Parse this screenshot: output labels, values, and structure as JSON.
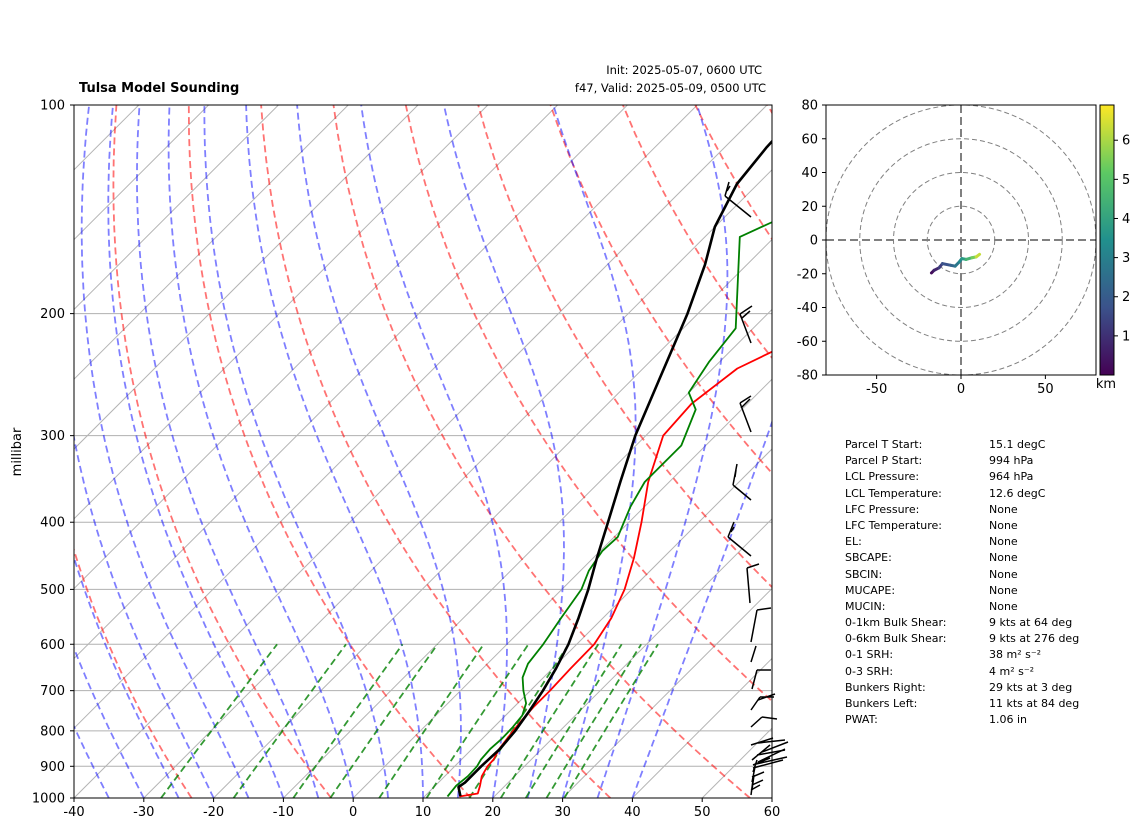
{
  "header": {
    "title": "Tulsa Model Sounding",
    "init": "Init: 2025-05-07, 0600 UTC",
    "valid": "f47, Valid: 2025-05-09, 0500 UTC"
  },
  "chart_data": [
    {
      "type": "line",
      "subtype": "skew-t log-p",
      "ylabel": "millibar",
      "xlabel": "",
      "xlim": [
        -40,
        60
      ],
      "ylim": [
        1000,
        100
      ],
      "log_y": true,
      "x_ticks": [
        -40,
        -30,
        -20,
        -10,
        0,
        10,
        20,
        30,
        40,
        50,
        60
      ],
      "y_ticks": [
        1000,
        900,
        800,
        700,
        600,
        500,
        400,
        300,
        200,
        100
      ],
      "grid": true,
      "colors": {
        "temperature": "#ff0000",
        "dewpoint": "#008000",
        "parcel": "#000000",
        "dry_adiabats": "#ff0000",
        "moist_adiabats": "#0000ff",
        "mixing_ratio": "#008000"
      },
      "series": [
        {
          "key": "temperature",
          "points": [
            [
              15.0,
              995
            ],
            [
              17.2,
              985
            ],
            [
              16.4,
              960
            ],
            [
              15.3,
              930
            ],
            [
              14.7,
              900
            ],
            [
              14.6,
              880
            ],
            [
              13.9,
              850
            ],
            [
              13.3,
              800
            ],
            [
              13.0,
              770
            ],
            [
              12.8,
              740
            ],
            [
              12.8,
              700
            ],
            [
              12.6,
              650
            ],
            [
              12.5,
              600
            ],
            [
              11.2,
              550
            ],
            [
              9.0,
              500
            ],
            [
              5.8,
              450
            ],
            [
              1.8,
              400
            ],
            [
              -3.0,
              350
            ],
            [
              -7.5,
              300
            ],
            [
              -8.0,
              270
            ],
            [
              -6.5,
              240
            ],
            [
              -2.5,
              220
            ],
            [
              7.5,
              190
            ],
            [
              20.0,
              160
            ],
            [
              28.0,
              140
            ],
            [
              39.0,
              115
            ],
            [
              49.0,
              100
            ]
          ]
        },
        {
          "key": "dewpoint",
          "points": [
            [
              13.3,
              995
            ],
            [
              13.0,
              960
            ],
            [
              13.3,
              930
            ],
            [
              13.2,
              900
            ],
            [
              12.8,
              880
            ],
            [
              12.6,
              850
            ],
            [
              12.8,
              820
            ],
            [
              12.7,
              790
            ],
            [
              12.4,
              760
            ],
            [
              11.2,
              730
            ],
            [
              9.0,
              700
            ],
            [
              7.0,
              670
            ],
            [
              5.8,
              640
            ],
            [
              5.2,
              600
            ],
            [
              4.0,
              550
            ],
            [
              2.8,
              500
            ],
            [
              1.2,
              470
            ],
            [
              0.3,
              440
            ],
            [
              0.5,
              420
            ],
            [
              -2.0,
              380
            ],
            [
              -3.5,
              350
            ],
            [
              -3.5,
              310
            ],
            [
              -6.6,
              275
            ],
            [
              -10.0,
              260
            ],
            [
              -11.5,
              235
            ],
            [
              -12.5,
              210
            ],
            [
              -25.0,
              155
            ],
            [
              -16.0,
              130
            ],
            [
              -5.0,
              100
            ]
          ]
        },
        {
          "key": "parcel",
          "points": [
            [
              15.1,
              994
            ],
            [
              13.5,
              964
            ],
            [
              13.8,
              950
            ],
            [
              13.8,
              900
            ],
            [
              14.0,
              850
            ],
            [
              13.6,
              800
            ],
            [
              12.8,
              750
            ],
            [
              11.8,
              700
            ],
            [
              10.5,
              650
            ],
            [
              8.8,
              600
            ],
            [
              6.5,
              550
            ],
            [
              3.8,
              500
            ],
            [
              0.5,
              450
            ],
            [
              -3.0,
              400
            ],
            [
              -7.0,
              350
            ],
            [
              -11.5,
              300
            ],
            [
              -16.0,
              250
            ],
            [
              -21.5,
              200
            ],
            [
              -26.0,
              170
            ],
            [
              -30.0,
              150
            ],
            [
              -33.0,
              130
            ],
            [
              -34.0,
              115
            ],
            [
              -34.5,
              100
            ]
          ]
        }
      ],
      "wind_barbs": "shown at right edge, 1000-130 hPa"
    },
    {
      "type": "line",
      "subtype": "hodograph",
      "xlim": [
        -80,
        80
      ],
      "ylim": [
        -80,
        80
      ],
      "x_ticks": [
        -50,
        0,
        50
      ],
      "y_ticks": [
        80,
        60,
        40,
        20,
        0,
        -20,
        -40,
        -60,
        -80
      ],
      "rings": [
        20,
        40,
        60,
        80
      ],
      "colorbar": {
        "label": "km",
        "ticks": [
          6,
          5,
          4,
          3,
          2,
          1
        ],
        "colormap": "viridis",
        "max": 6.9
      },
      "points": [
        [
          -17.5,
          -19.5,
          0.0
        ],
        [
          -16.0,
          -18.0,
          0.5
        ],
        [
          -13.0,
          -16.5,
          1.0
        ],
        [
          -11.0,
          -14.0,
          1.5
        ],
        [
          -6.0,
          -15.0,
          2.0
        ],
        [
          -3.5,
          -15.5,
          2.5
        ],
        [
          -1.0,
          -13.0,
          3.0
        ],
        [
          0.5,
          -11.0,
          3.5
        ],
        [
          3.0,
          -11.5,
          4.0
        ],
        [
          6.5,
          -10.5,
          5.0
        ],
        [
          9.0,
          -10.0,
          5.8
        ],
        [
          11.0,
          -8.5,
          6.8
        ]
      ]
    }
  ],
  "params": [
    {
      "label": "Parcel T Start:",
      "value": "15.1 degC"
    },
    {
      "label": "Parcel P Start:",
      "value": "994 hPa"
    },
    {
      "label": "LCL Pressure:",
      "value": "964 hPa"
    },
    {
      "label": "LCL Temperature:",
      "value": "12.6 degC"
    },
    {
      "label": "LFC Pressure:",
      "value": "None"
    },
    {
      "label": "LFC Temperature:",
      "value": "None"
    },
    {
      "label": "EL:",
      "value": "None"
    },
    {
      "label": "SBCAPE:",
      "value": "None"
    },
    {
      "label": "SBCIN:",
      "value": "None"
    },
    {
      "label": "MUCAPE:",
      "value": "None"
    },
    {
      "label": "MUCIN:",
      "value": "None"
    },
    {
      "label": "0-1km Bulk Shear:",
      "value": "9 kts at 64 deg"
    },
    {
      "label": "0-6km Bulk Shear:",
      "value": "9 kts at 276 deg"
    },
    {
      "label": "0-1 SRH:",
      "value": "38 m² s⁻²"
    },
    {
      "label": "0-3 SRH:",
      "value": "4 m² s⁻²"
    },
    {
      "label": "Bunkers Right:",
      "value": "29 kts at 3 deg"
    },
    {
      "label": "Bunkers Left:",
      "value": "11 kts at 84 deg"
    },
    {
      "label": "PWAT:",
      "value": "1.06 in"
    }
  ]
}
